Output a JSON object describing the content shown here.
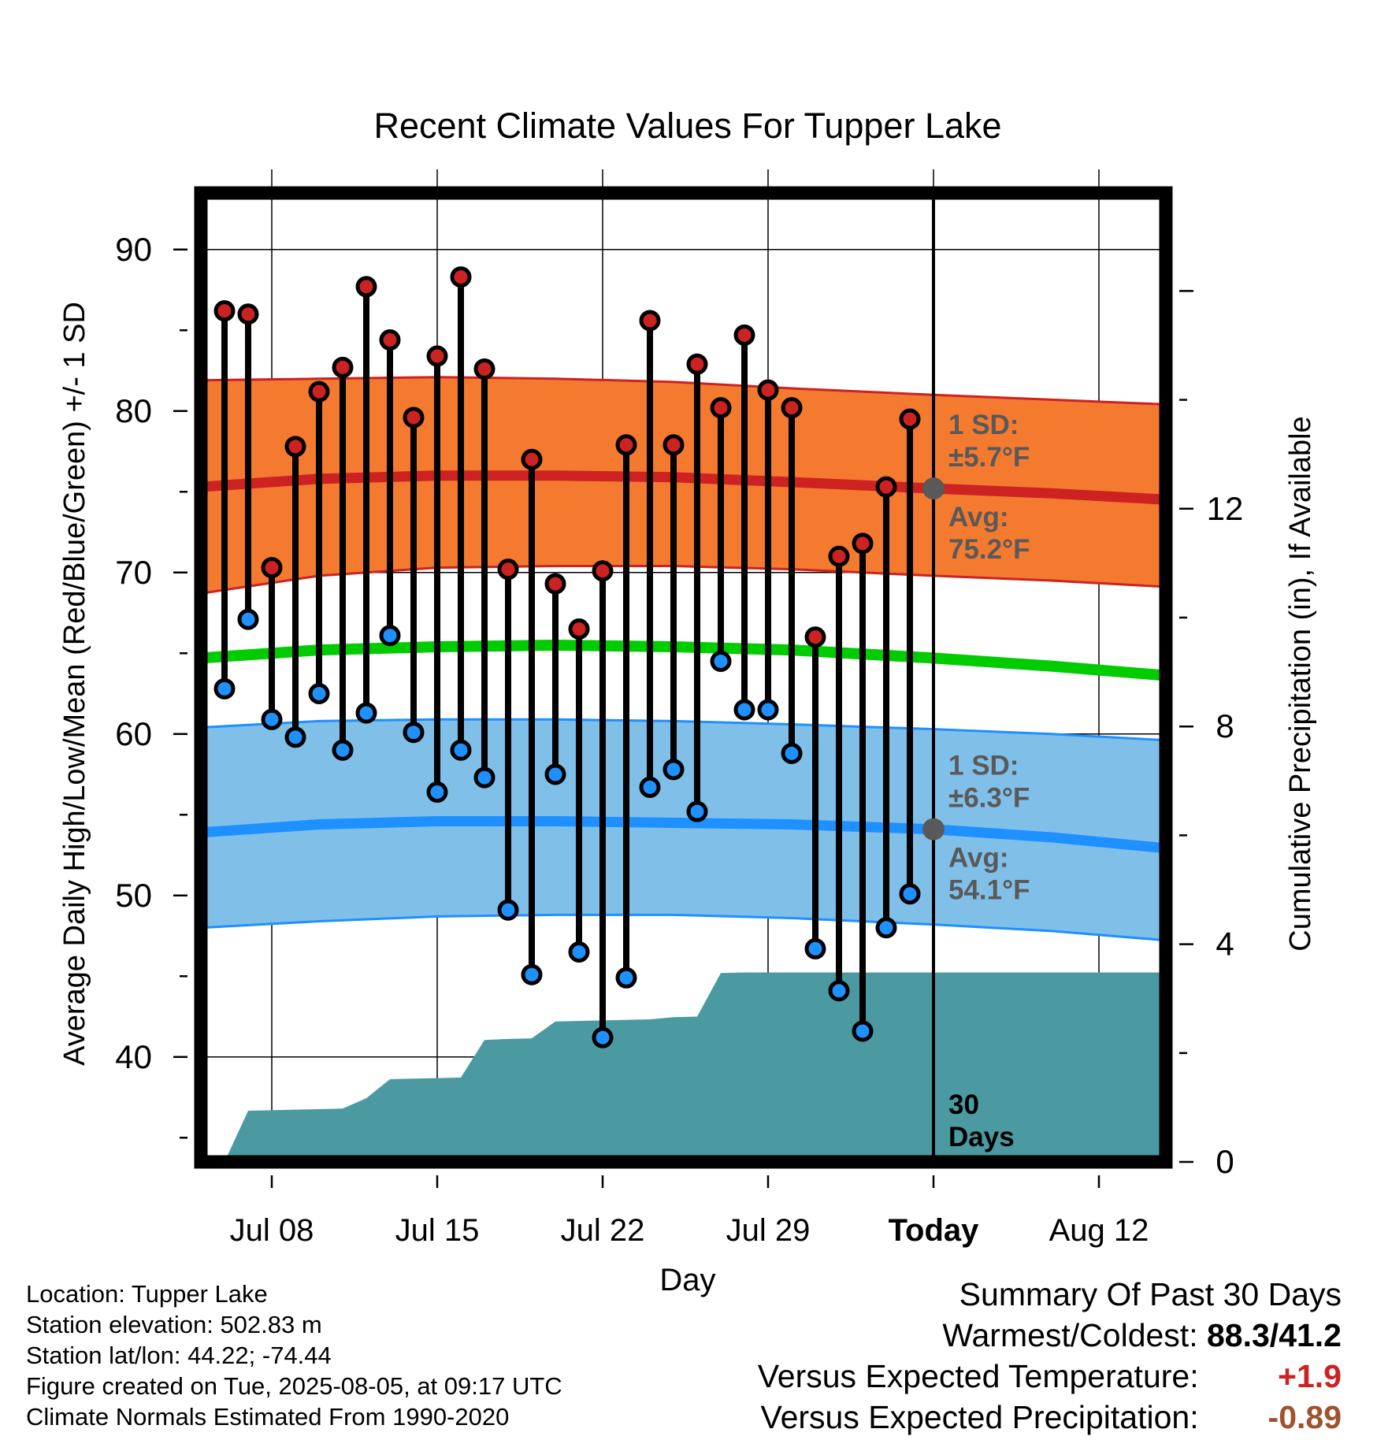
{
  "chart_data": {
    "type": "line",
    "title": "Recent Climate Values For Tupper Lake",
    "xlabel": "Day",
    "ylabel": "Average Daily High/Low/Mean (Red/Blue/Green) +/- 1 SD",
    "y2label": "Cumulative Precipitation (in), If Available",
    "ylim": [
      33.5,
      93.5
    ],
    "y2lim": [
      0,
      17.8
    ],
    "y_ticks": [
      "40",
      "50",
      "60",
      "70",
      "80",
      "90"
    ],
    "y2_ticks": [
      "0",
      "4",
      "8",
      "12"
    ],
    "x_start": "Jul 05",
    "x_end": "Aug 15",
    "x_ticks": [
      {
        "date": "Jul 08",
        "label": "Jul 08"
      },
      {
        "date": "Jul 15",
        "label": "Jul 15"
      },
      {
        "date": "Jul 22",
        "label": "Jul 22"
      },
      {
        "date": "Jul 29",
        "label": "Jul 29"
      },
      {
        "date": "Aug 05",
        "label": "Today"
      },
      {
        "date": "Aug 12",
        "label": "Aug 12"
      }
    ],
    "today": "Aug 05",
    "grid": true,
    "series": [
      {
        "name": "High",
        "x": [
          "Jul 06",
          "Jul 07",
          "Jul 08",
          "Jul 09",
          "Jul 10",
          "Jul 11",
          "Jul 12",
          "Jul 13",
          "Jul 14",
          "Jul 15",
          "Jul 16",
          "Jul 17",
          "Jul 18",
          "Jul 19",
          "Jul 20",
          "Jul 21",
          "Jul 22",
          "Jul 23",
          "Jul 24",
          "Jul 25",
          "Jul 26",
          "Jul 27",
          "Jul 28",
          "Jul 29",
          "Jul 30",
          "Jul 31",
          "Aug 01",
          "Aug 02",
          "Aug 03",
          "Aug 04"
        ],
        "values": [
          86.2,
          86.0,
          70.3,
          77.8,
          81.2,
          82.7,
          87.7,
          84.4,
          79.6,
          83.4,
          88.3,
          82.6,
          70.2,
          77.0,
          69.3,
          66.5,
          70.1,
          77.9,
          85.6,
          77.9,
          82.9,
          80.2,
          84.7,
          81.3,
          80.2,
          66.0,
          71.0,
          71.8,
          75.3,
          79.5
        ],
        "color": "#cc2222"
      },
      {
        "name": "Low",
        "x": [
          "Jul 06",
          "Jul 07",
          "Jul 08",
          "Jul 09",
          "Jul 10",
          "Jul 11",
          "Jul 12",
          "Jul 13",
          "Jul 14",
          "Jul 15",
          "Jul 16",
          "Jul 17",
          "Jul 18",
          "Jul 19",
          "Jul 20",
          "Jul 21",
          "Jul 22",
          "Jul 23",
          "Jul 24",
          "Jul 25",
          "Jul 26",
          "Jul 27",
          "Jul 28",
          "Jul 29",
          "Jul 30",
          "Jul 31",
          "Aug 01",
          "Aug 02",
          "Aug 03",
          "Aug 04"
        ],
        "values": [
          62.8,
          67.1,
          60.9,
          59.8,
          62.5,
          59.0,
          61.3,
          66.1,
          60.1,
          56.4,
          59.0,
          57.3,
          49.1,
          45.1,
          57.5,
          46.5,
          41.2,
          44.9,
          56.7,
          57.8,
          55.2,
          64.5,
          61.5,
          61.5,
          58.8,
          46.7,
          44.1,
          41.6,
          48.0,
          50.1
        ],
        "color": "#1e90ff"
      },
      {
        "name": "Normal High",
        "x": [
          "Jul 05",
          "Jul 10",
          "Jul 15",
          "Jul 20",
          "Jul 25",
          "Jul 30",
          "Aug 05",
          "Aug 10",
          "Aug 15"
        ],
        "values": [
          75.3,
          75.8,
          76.0,
          76.0,
          75.9,
          75.6,
          75.2,
          74.9,
          74.5
        ],
        "sd_lower": [
          68.7,
          69.8,
          70.3,
          70.4,
          70.4,
          70.2,
          69.8,
          69.5,
          69.1
        ],
        "sd_upper": [
          81.9,
          82.0,
          82.1,
          82.0,
          81.8,
          81.4,
          81.0,
          80.7,
          80.4
        ],
        "color": "#cc2222",
        "band_color": "#f47a30"
      },
      {
        "name": "Normal Mean",
        "x": [
          "Jul 05",
          "Jul 10",
          "Jul 15",
          "Jul 20",
          "Jul 25",
          "Jul 30",
          "Aug 05",
          "Aug 10",
          "Aug 15"
        ],
        "values": [
          64.7,
          65.2,
          65.4,
          65.5,
          65.4,
          65.2,
          64.7,
          64.2,
          63.6
        ],
        "color": "#00cc00"
      },
      {
        "name": "Normal Low",
        "x": [
          "Jul 05",
          "Jul 10",
          "Jul 15",
          "Jul 20",
          "Jul 25",
          "Jul 30",
          "Aug 05",
          "Aug 10",
          "Aug 15"
        ],
        "values": [
          53.9,
          54.4,
          54.6,
          54.6,
          54.5,
          54.4,
          54.1,
          53.6,
          52.9
        ],
        "sd_lower": [
          48.0,
          48.4,
          48.7,
          48.8,
          48.8,
          48.6,
          48.2,
          47.8,
          47.2
        ],
        "sd_upper": [
          60.4,
          60.8,
          60.9,
          60.9,
          60.8,
          60.6,
          60.3,
          60.0,
          59.6
        ],
        "color": "#1e90ff",
        "band_color": "#80bfe8"
      },
      {
        "name": "Cumulative Precipitation",
        "axis": "y2",
        "x": [
          "Jul 05",
          "Jul 06",
          "Jul 07",
          "Jul 08",
          "Jul 09",
          "Jul 10",
          "Jul 11",
          "Jul 12",
          "Jul 13",
          "Jul 14",
          "Jul 15",
          "Jul 16",
          "Jul 17",
          "Jul 18",
          "Jul 19",
          "Jul 20",
          "Jul 21",
          "Jul 22",
          "Jul 23",
          "Jul 24",
          "Jul 25",
          "Jul 26",
          "Jul 27",
          "Jul 28",
          "Jul 29",
          "Jul 30",
          "Jul 31",
          "Aug 01",
          "Aug 02",
          "Aug 03",
          "Aug 04",
          "Aug 05",
          "Aug 15"
        ],
        "values": [
          0.0,
          0.0,
          0.94,
          0.95,
          0.96,
          0.97,
          0.98,
          1.17,
          1.52,
          1.53,
          1.54,
          1.55,
          2.24,
          2.26,
          2.27,
          2.58,
          2.59,
          2.6,
          2.61,
          2.62,
          2.66,
          2.67,
          3.47,
          3.48,
          3.48,
          3.48,
          3.48,
          3.48,
          3.48,
          3.48,
          3.48,
          3.48,
          3.48
        ],
        "color": "#4b9aa1"
      }
    ],
    "annotations": {
      "high_sd": [
        "1 SD:",
        "±5.7°F"
      ],
      "high_avg": [
        "Avg:",
        "75.2°F"
      ],
      "low_sd": [
        "1 SD:",
        "±6.3°F"
      ],
      "low_avg": [
        "Avg:",
        "54.1°F"
      ],
      "window": [
        "30",
        "Days"
      ]
    },
    "today_avg_high": 75.2,
    "today_avg_low": 54.1
  },
  "info": {
    "location": "Location: Tupper Lake",
    "elevation": "Station elevation: 502.83 m",
    "latlon": "Station lat/lon: 44.22; -74.44",
    "created": "Figure created on Tue, 2025-08-05, at 09:17 UTC",
    "normals": "Climate Normals Estimated From 1990-2020"
  },
  "summary": {
    "title": "Summary Of Past 30 Days",
    "warmest_label": "Warmest/Coldest:",
    "warmest_value": "88.3/41.2",
    "temp_label": "Versus Expected Temperature:",
    "temp_value": "+1.9",
    "precip_label": "Versus Expected Precipitation:",
    "precip_value": "-0.89",
    "colors": {
      "temp": "#cc2222",
      "precip": "#a0522d"
    }
  }
}
